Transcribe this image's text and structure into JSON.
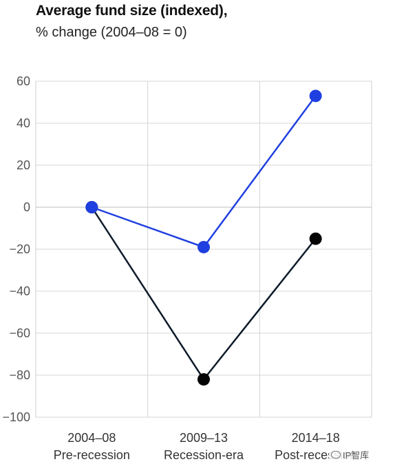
{
  "chart_data": {
    "type": "line",
    "title": "Average fund size (indexed),",
    "subtitle": "% change (2004–08 = 0)",
    "categories": [
      {
        "period": "2004–08",
        "label": "Pre-recession"
      },
      {
        "period": "2009–13",
        "label": "Recession-era"
      },
      {
        "period": "2014–18",
        "label": "Post-recession"
      }
    ],
    "series": [
      {
        "color": "#1f3fe0",
        "values": [
          0,
          -19,
          53
        ]
      },
      {
        "color": "#0d1b2a",
        "marker_color": "#050505",
        "values": [
          0,
          -82,
          -15
        ]
      }
    ],
    "ylim": [
      -100,
      60
    ],
    "yticks": [
      "60",
      "40",
      "20",
      "0",
      "−20",
      "−40",
      "−60",
      "−80",
      "−100"
    ],
    "ytick_values": [
      60,
      40,
      20,
      0,
      -20,
      -40,
      -60,
      -80,
      -100
    ],
    "grid": true,
    "legend": "none"
  },
  "watermark": {
    "text": "IP智库",
    "icon": "wechat-icon"
  }
}
